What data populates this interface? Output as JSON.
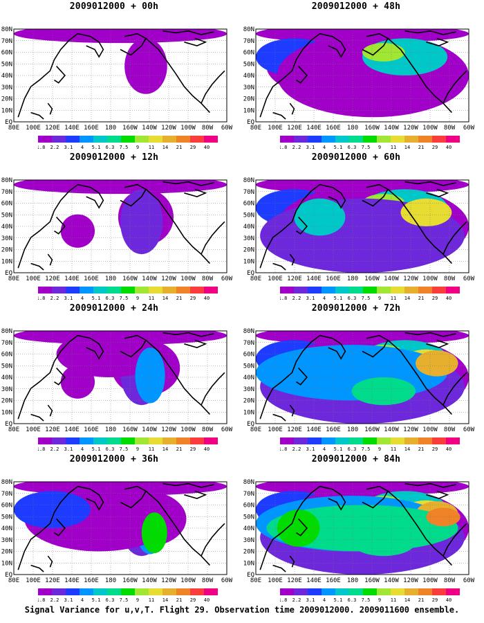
{
  "panels": [
    {
      "title": "2009012000 + 00h",
      "intensity": 0
    },
    {
      "title": "2009012000 + 48h",
      "intensity": 4
    },
    {
      "title": "2009012000 + 12h",
      "intensity": 1
    },
    {
      "title": "2009012000 + 60h",
      "intensity": 5
    },
    {
      "title": "2009012000 + 24h",
      "intensity": 2
    },
    {
      "title": "2009012000 + 72h",
      "intensity": 6
    },
    {
      "title": "2009012000 + 36h",
      "intensity": 3
    },
    {
      "title": "2009012000 + 84h",
      "intensity": 7
    }
  ],
  "lat_labels": [
    "80N",
    "70N",
    "60N",
    "50N",
    "40N",
    "30N",
    "20N",
    "10N",
    "EQ"
  ],
  "lon_labels": [
    "80E",
    "100E",
    "120E",
    "140E",
    "160E",
    "180",
    "160W",
    "140W",
    "120W",
    "100W",
    "80W",
    "60W"
  ],
  "legend": {
    "labels": [
      "1.8",
      "2.2",
      "3.1",
      "4",
      "5.1",
      "6.3",
      "7.5",
      "9",
      "11",
      "14",
      "21",
      "29",
      "40"
    ],
    "colors": [
      "#a000c8",
      "#6e28dc",
      "#1e3cff",
      "#0096ff",
      "#00c8c8",
      "#00dc8c",
      "#00dc00",
      "#a0e632",
      "#e6dc32",
      "#e6af2d",
      "#f08228",
      "#fa3c3c",
      "#f00082"
    ]
  },
  "footer": "Signal Variance for u,v,T. Flight 29. Observation time 2009012000. 2009011600 ensemble."
}
